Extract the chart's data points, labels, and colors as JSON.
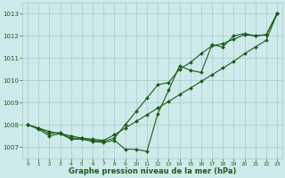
{
  "x": [
    0,
    1,
    2,
    3,
    4,
    5,
    6,
    7,
    8,
    9,
    10,
    11,
    12,
    13,
    14,
    15,
    16,
    17,
    18,
    19,
    20,
    21,
    22,
    23
  ],
  "line_smooth": [
    1008.0,
    1007.85,
    1007.7,
    1007.6,
    1007.5,
    1007.4,
    1007.35,
    1007.3,
    1007.55,
    1007.85,
    1008.15,
    1008.45,
    1008.75,
    1009.05,
    1009.35,
    1009.65,
    1009.95,
    1010.25,
    1010.55,
    1010.85,
    1011.2,
    1011.5,
    1011.8,
    1013.0
  ],
  "line_zigzag": [
    1008.0,
    1007.8,
    1007.5,
    1007.6,
    1007.35,
    1007.35,
    1007.25,
    1007.2,
    1007.3,
    1006.9,
    1006.9,
    1006.8,
    1008.5,
    1009.55,
    1010.65,
    1010.45,
    1010.35,
    1011.6,
    1011.5,
    1012.0,
    1012.1,
    1012.0,
    1012.05,
    1013.0
  ],
  "line_mid": [
    1008.0,
    1007.85,
    1007.6,
    1007.65,
    1007.4,
    1007.4,
    1007.3,
    1007.25,
    1007.4,
    1008.0,
    1008.6,
    1009.2,
    1009.8,
    1009.9,
    1010.5,
    1010.8,
    1011.2,
    1011.55,
    1011.65,
    1011.85,
    1012.05,
    1012.0,
    1012.05,
    1013.0
  ],
  "line_color": "#1a5c1a",
  "bg_color": "#ceeaea",
  "grid_color": "#a8cccc",
  "ylim": [
    1006.5,
    1013.5
  ],
  "yticks": [
    1007,
    1008,
    1009,
    1010,
    1011,
    1012,
    1013
  ],
  "xticks": [
    0,
    1,
    2,
    3,
    4,
    5,
    6,
    7,
    8,
    9,
    10,
    11,
    12,
    13,
    14,
    15,
    16,
    17,
    18,
    19,
    20,
    21,
    22,
    23
  ],
  "xlabel": "Graphe pression niveau de la mer (hPa)"
}
